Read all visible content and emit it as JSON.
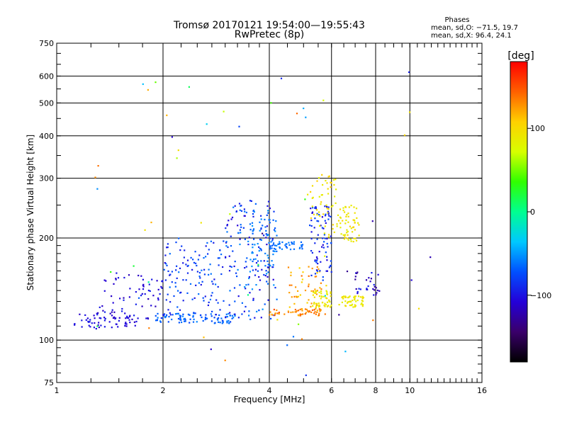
{
  "chart_data": {
    "type": "scatter",
    "title": "Tromsø 20170121 19:54:00—19:55:43",
    "subtitle": "RwPretec (8p)",
    "xlabel": "Frequency [MHz]",
    "ylabel": "Stationary phase Virtual Height [km]",
    "xscale": "log2",
    "yscale": "log",
    "xlim": [
      1,
      16
    ],
    "ylim": [
      75,
      750
    ],
    "x_ticks": [
      1,
      2,
      4,
      6,
      8,
      10,
      16
    ],
    "x_tick_labels": [
      "1",
      "2",
      "4",
      "6",
      "8",
      "10",
      "16"
    ],
    "y_ticks": [
      75,
      100,
      200,
      300,
      400,
      500,
      600,
      750
    ],
    "y_tick_labels": [
      "75",
      "100",
      "200",
      "300",
      "400",
      "500",
      "600",
      "750"
    ],
    "x_grid": [
      2,
      4,
      6,
      8,
      10
    ],
    "y_grid": [
      100,
      200,
      300,
      400,
      500,
      600
    ],
    "grid": true,
    "stats": {
      "heading": "Phases",
      "line1": "mean, sd,O: −71.5, 19.7",
      "line2": "mean, sd,X:  96.4, 24.1"
    },
    "colorbar": {
      "label": "[deg]",
      "min": -180,
      "max": 180,
      "tick_labels": [
        "100",
        "0",
        "−100"
      ],
      "tick_values": [
        100,
        0,
        -100
      ],
      "colormap": [
        "#000000",
        "#3a006a",
        "#2400d8",
        "#0050ff",
        "#00c8ff",
        "#00ff90",
        "#30ff00",
        "#d8ff00",
        "#ffd000",
        "#ff6000",
        "#ff0000"
      ]
    },
    "clusters": [
      {
        "x": [
          1.12,
          1.7
        ],
        "y": [
          108,
          120
        ],
        "phase": [
          -115,
          -95
        ],
        "n": 60
      },
      {
        "x": [
          1.3,
          2.0
        ],
        "y": [
          115,
          160
        ],
        "phase": [
          -120,
          -90
        ],
        "n": 70
      },
      {
        "x": [
          1.9,
          3.2
        ],
        "y": [
          112,
          120
        ],
        "phase": [
          -80,
          -55
        ],
        "n": 90
      },
      {
        "x": [
          2.0,
          3.0
        ],
        "y": [
          118,
          200
        ],
        "phase": [
          -100,
          -60
        ],
        "n": 120
      },
      {
        "x": [
          3.0,
          4.2
        ],
        "y": [
          115,
          260
        ],
        "phase": [
          -110,
          -50
        ],
        "n": 160
      },
      {
        "x": [
          3.5,
          4.2
        ],
        "y": [
          165,
          230
        ],
        "phase": [
          -70,
          -50
        ],
        "n": 60
      },
      {
        "x": [
          4.0,
          5.0
        ],
        "y": [
          185,
          195
        ],
        "phase": [
          -70,
          -55
        ],
        "n": 40
      },
      {
        "x": [
          4.0,
          5.8
        ],
        "y": [
          118,
          124
        ],
        "phase": [
          115,
          150
        ],
        "n": 60
      },
      {
        "x": [
          4.5,
          5.8
        ],
        "y": [
          125,
          165
        ],
        "phase": [
          100,
          140
        ],
        "n": 50
      },
      {
        "x": [
          5.3,
          6.0
        ],
        "y": [
          125,
          140
        ],
        "phase": [
          80,
          100
        ],
        "n": 50
      },
      {
        "x": [
          5.2,
          6.0
        ],
        "y": [
          150,
          250
        ],
        "phase": [
          -110,
          -70
        ],
        "n": 80
      },
      {
        "x": [
          5.2,
          6.2
        ],
        "y": [
          200,
          310
        ],
        "phase": [
          80,
          110
        ],
        "n": 50
      },
      {
        "x": [
          6.3,
          7.4
        ],
        "y": [
          125,
          135
        ],
        "phase": [
          80,
          100
        ],
        "n": 50
      },
      {
        "x": [
          6.2,
          7.2
        ],
        "y": [
          195,
          250
        ],
        "phase": [
          80,
          105
        ],
        "n": 60
      },
      {
        "x": [
          7.0,
          8.2
        ],
        "y": [
          135,
          160
        ],
        "phase": [
          -130,
          -90
        ],
        "n": 30
      },
      {
        "x": [
          1.2,
          13.0
        ],
        "y": [
          78,
          620
        ],
        "phase": [
          -150,
          150
        ],
        "n": 60
      }
    ]
  }
}
